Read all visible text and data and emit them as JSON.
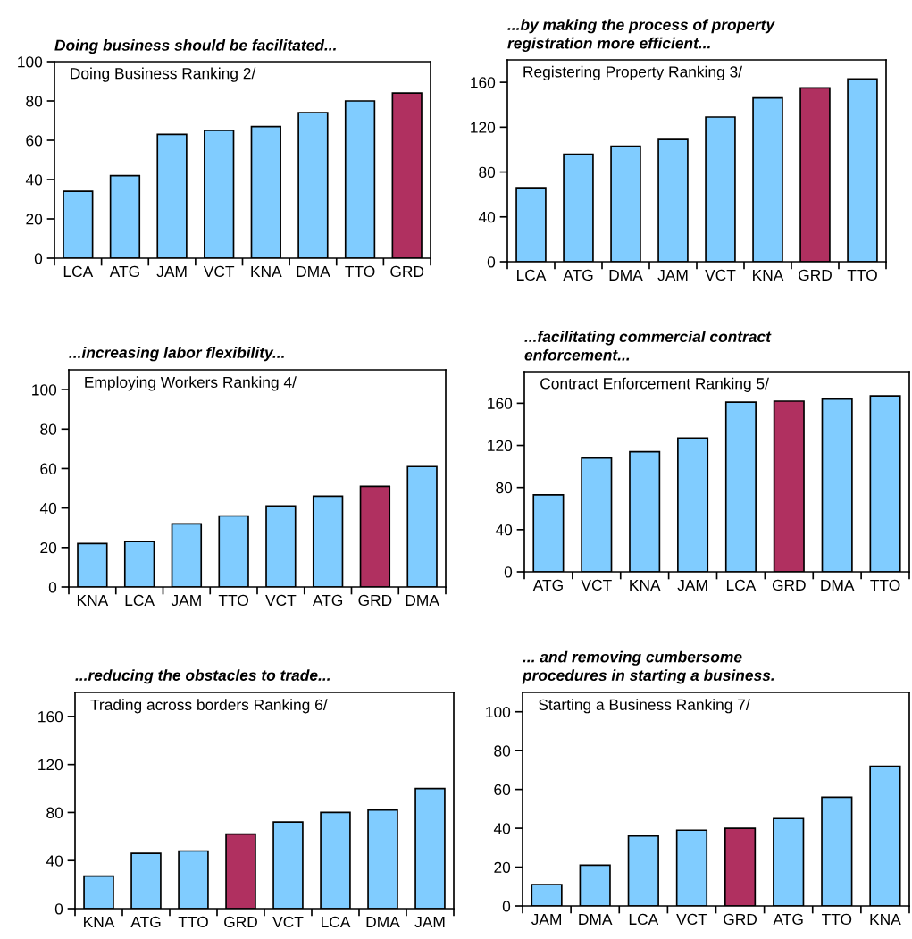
{
  "chart_data": [
    {
      "type": "bar",
      "title": "Doing business should be facilitated...",
      "subtitle": "Doing Business Ranking 2/",
      "categories": [
        "LCA",
        "ATG",
        "JAM",
        "VCT",
        "KNA",
        "DMA",
        "TTO",
        "GRD"
      ],
      "values": [
        34,
        42,
        63,
        65,
        67,
        74,
        80,
        84
      ],
      "colors": [
        "#80ccff",
        "#80ccff",
        "#80ccff",
        "#80ccff",
        "#80ccff",
        "#80ccff",
        "#80ccff",
        "#b03060"
      ],
      "ylim": [
        0,
        100
      ],
      "yticks": [
        0,
        20,
        40,
        60,
        80,
        100
      ]
    },
    {
      "type": "bar",
      "title": "...by making the process of property\nregistration more efficient...",
      "subtitle": "Registering Property Ranking 3/",
      "categories": [
        "LCA",
        "ATG",
        "DMA",
        "JAM",
        "VCT",
        "KNA",
        "GRD",
        "TTO"
      ],
      "values": [
        66,
        96,
        103,
        109,
        129,
        146,
        155,
        163
      ],
      "colors": [
        "#80ccff",
        "#80ccff",
        "#80ccff",
        "#80ccff",
        "#80ccff",
        "#80ccff",
        "#b03060",
        "#80ccff"
      ],
      "ylim": [
        0,
        180
      ],
      "yticks": [
        0,
        40,
        80,
        120,
        160
      ]
    },
    {
      "type": "bar",
      "title": "...increasing labor flexibility...",
      "subtitle": "Employing Workers Ranking 4/",
      "categories": [
        "KNA",
        "LCA",
        "JAM",
        "TTO",
        "VCT",
        "ATG",
        "GRD",
        "DMA"
      ],
      "values": [
        22,
        23,
        32,
        36,
        41,
        46,
        51,
        61
      ],
      "colors": [
        "#80ccff",
        "#80ccff",
        "#80ccff",
        "#80ccff",
        "#80ccff",
        "#80ccff",
        "#b03060",
        "#80ccff"
      ],
      "ylim": [
        0,
        110
      ],
      "yticks": [
        0,
        20,
        40,
        60,
        80,
        100
      ]
    },
    {
      "type": "bar",
      "title": "...facilitating commercial contract\nenforcement...",
      "subtitle": "Contract Enforcement Ranking 5/",
      "categories": [
        "ATG",
        "VCT",
        "KNA",
        "JAM",
        "LCA",
        "GRD",
        "DMA",
        "TTO"
      ],
      "values": [
        73,
        108,
        114,
        127,
        161,
        162,
        164,
        167
      ],
      "colors": [
        "#80ccff",
        "#80ccff",
        "#80ccff",
        "#80ccff",
        "#80ccff",
        "#b03060",
        "#80ccff",
        "#80ccff"
      ],
      "ylim": [
        0,
        190
      ],
      "yticks": [
        0,
        40,
        80,
        120,
        160
      ]
    },
    {
      "type": "bar",
      "title": "...reducing the obstacles to trade...",
      "subtitle": "Trading across borders Ranking 6/",
      "categories": [
        "KNA",
        "ATG",
        "TTO",
        "GRD",
        "VCT",
        "LCA",
        "DMA",
        "JAM"
      ],
      "values": [
        27,
        46,
        48,
        62,
        72,
        80,
        82,
        100
      ],
      "colors": [
        "#80ccff",
        "#80ccff",
        "#80ccff",
        "#b03060",
        "#80ccff",
        "#80ccff",
        "#80ccff",
        "#80ccff"
      ],
      "ylim": [
        0,
        180
      ],
      "yticks": [
        0,
        40,
        80,
        120,
        160
      ]
    },
    {
      "type": "bar",
      "title": "... and removing cumbersome\nprocedures in starting a business.",
      "subtitle": "Starting a Business Ranking 7/",
      "categories": [
        "JAM",
        "DMA",
        "LCA",
        "VCT",
        "GRD",
        "ATG",
        "TTO",
        "KNA"
      ],
      "values": [
        11,
        21,
        36,
        39,
        40,
        45,
        56,
        72
      ],
      "colors": [
        "#80ccff",
        "#80ccff",
        "#80ccff",
        "#80ccff",
        "#b03060",
        "#80ccff",
        "#80ccff",
        "#80ccff"
      ],
      "ylim": [
        0,
        110
      ],
      "yticks": [
        0,
        20,
        40,
        60,
        80,
        100
      ]
    }
  ]
}
